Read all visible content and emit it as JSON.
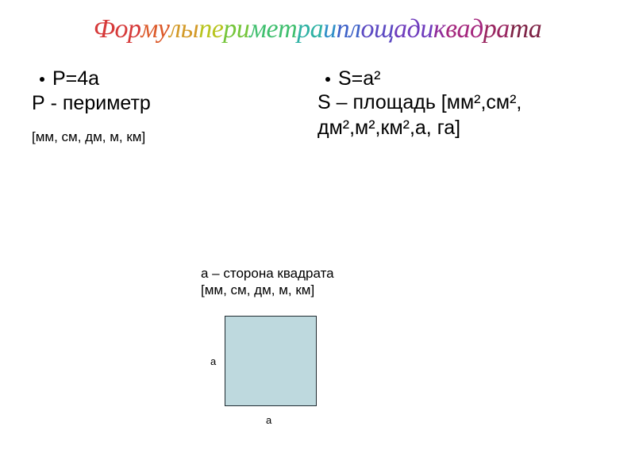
{
  "title_text": "Формулы периметра и площади квадрата",
  "title_colors": [
    "#d63a3a",
    "#dc5a2a",
    "#d39a28",
    "#b8c41e",
    "#75c53a",
    "#3fbf6e",
    "#2fb2a4",
    "#2f8fc8",
    "#3e62c8",
    "#5c49c2",
    "#6f3cbd",
    "#8f2c9b",
    "#a5277e",
    "#992560",
    "#7e2346"
  ],
  "left": {
    "formula": "P=4a",
    "definition": "Р - периметр",
    "units": "[мм, см, дм, м, км]"
  },
  "right": {
    "formula": "S=a²",
    "definition": "S – площадь [мм²,см², дм²,м²,км²,а, га]"
  },
  "side_note": {
    "line1": "а – сторона  квадрата",
    "line2": "[мм, см, дм, м, км]"
  },
  "square": {
    "fill": "#bed9de",
    "border": "#1f2a30",
    "label": "a"
  }
}
